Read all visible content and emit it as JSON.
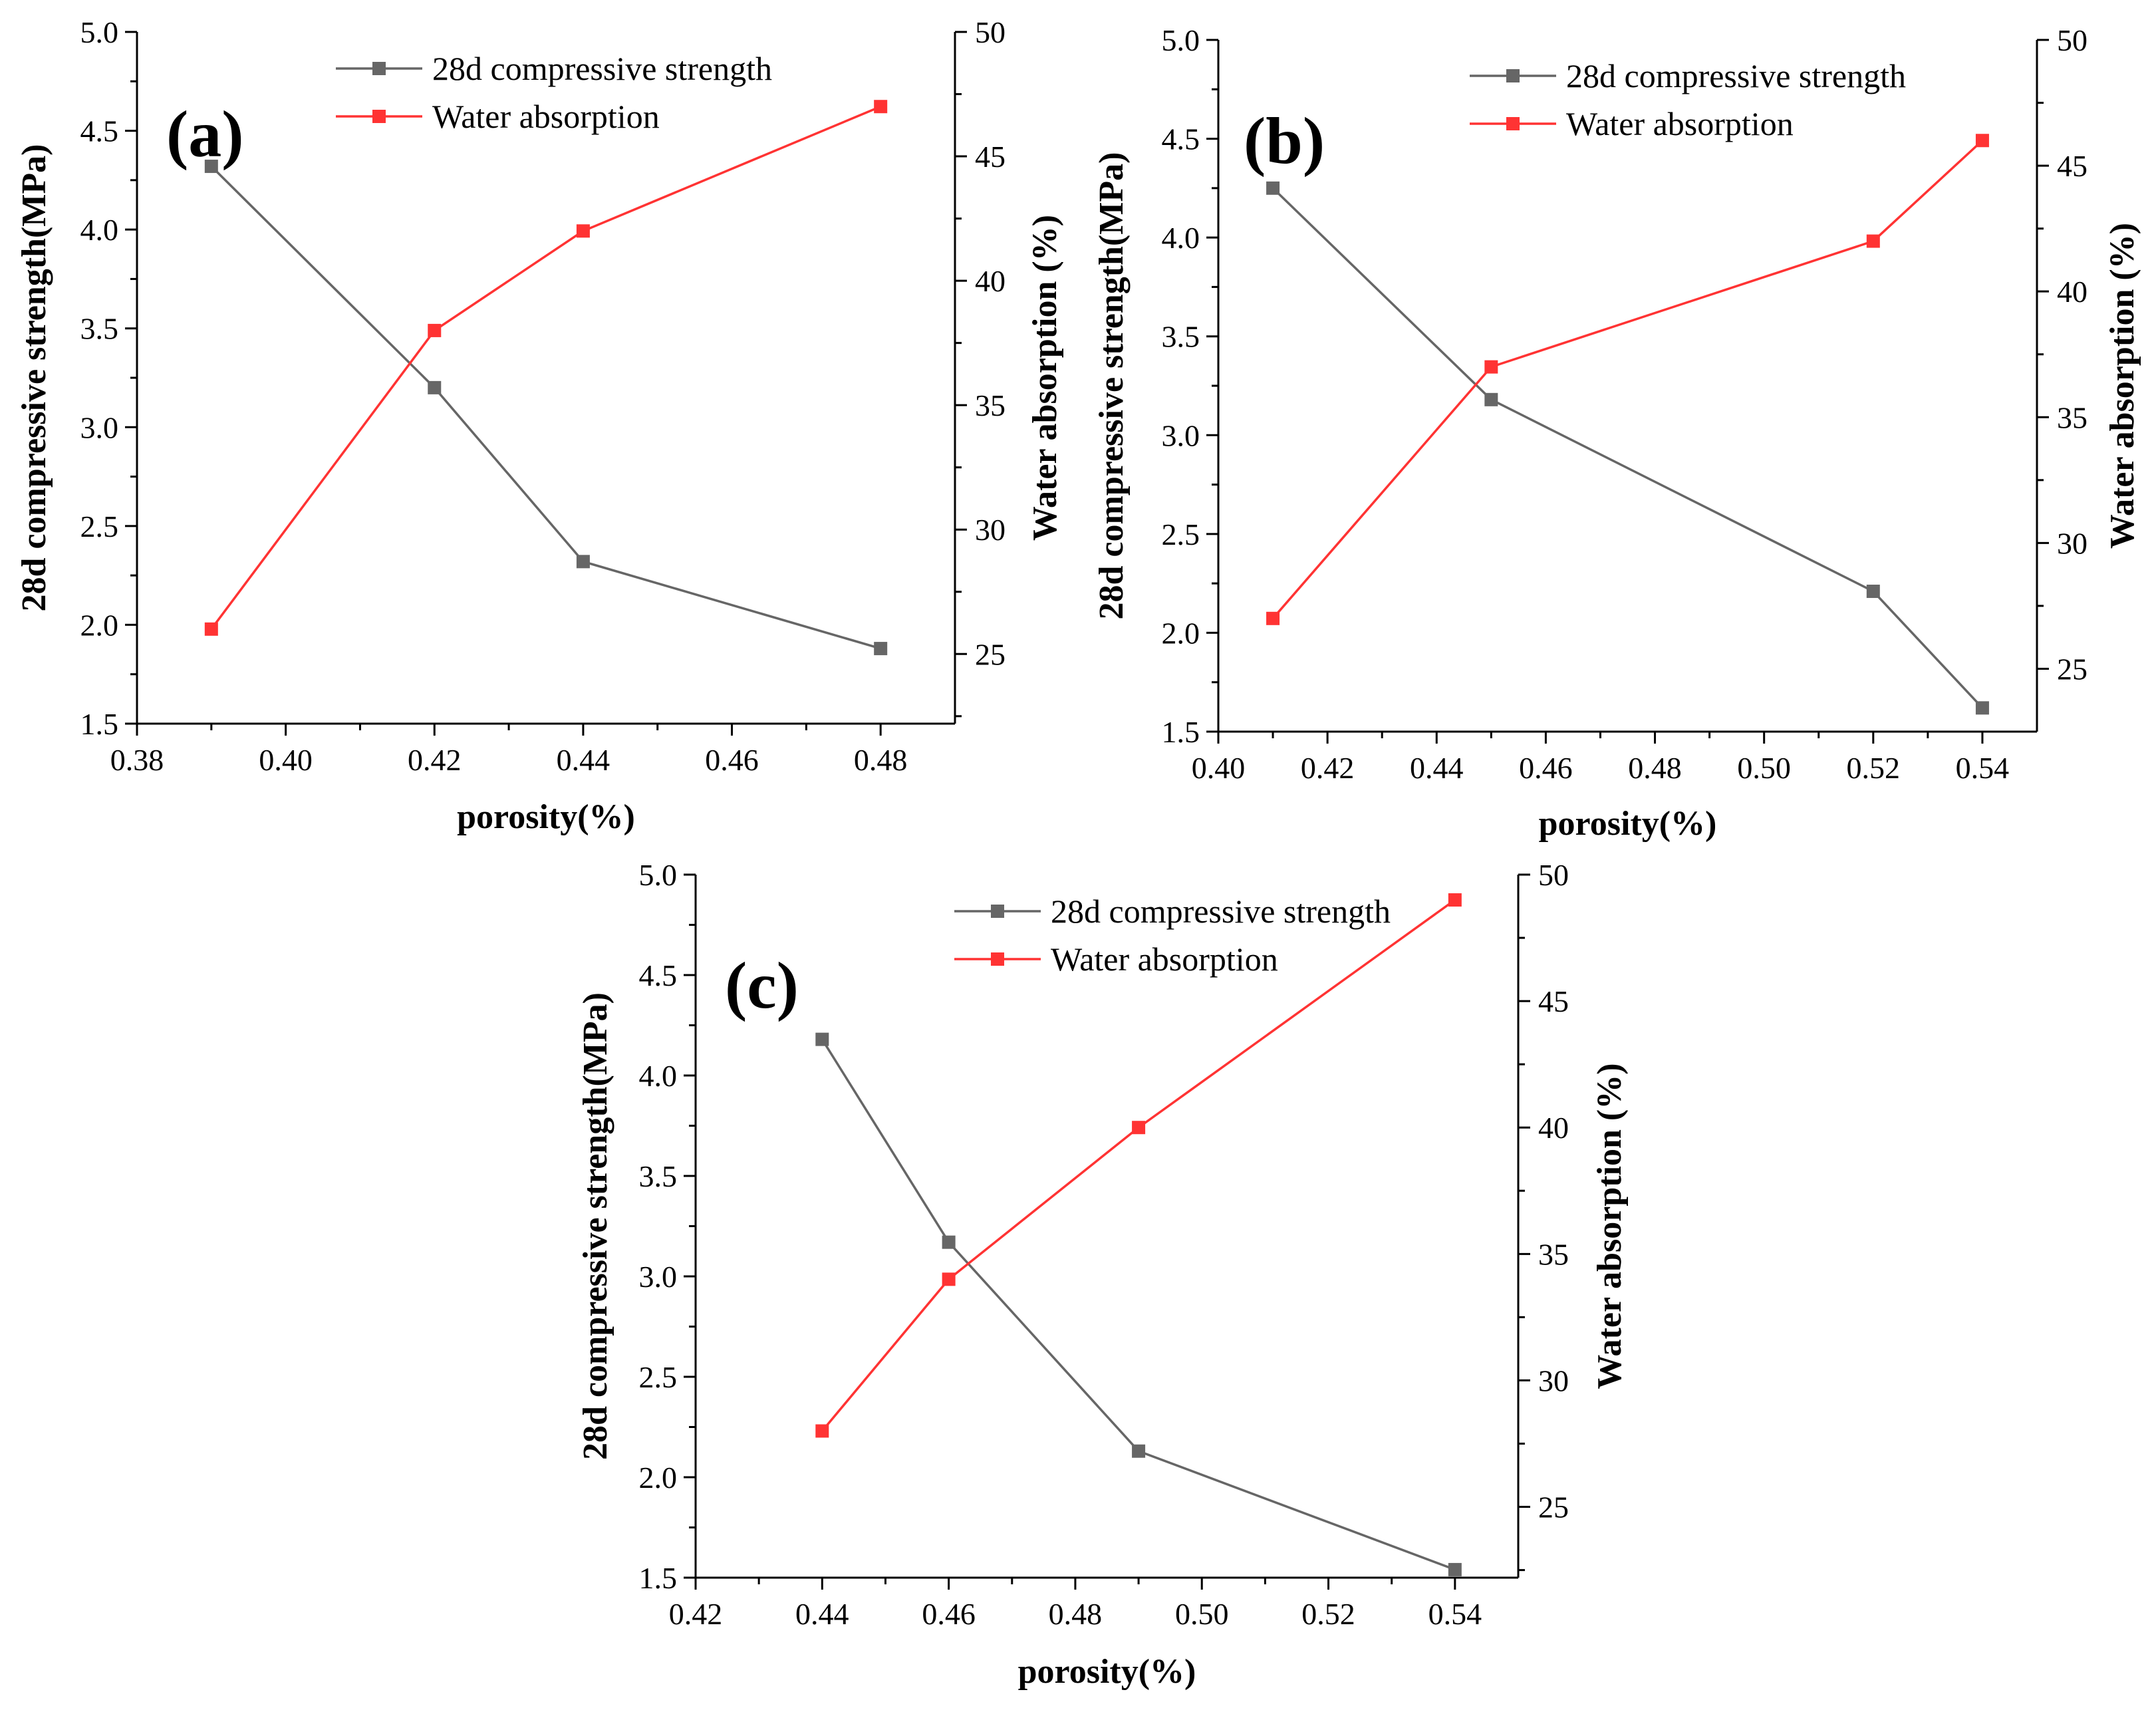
{
  "colors": {
    "strength": "#666666",
    "absorption": "#ff3333",
    "axis": "#000000"
  },
  "chart_data": [
    {
      "panel": "(a)",
      "type": "line",
      "xlabel": "porosity(%)",
      "ylabel": "28d compressive strength(MPa)",
      "y2label": "Water absorption (%)",
      "xlim": [
        0.38,
        0.49
      ],
      "ylim": [
        1.5,
        5.0
      ],
      "y2lim": [
        22.2,
        50
      ],
      "xticks": [
        "0.38",
        "0.40",
        "0.42",
        "0.44",
        "0.46",
        "0.48"
      ],
      "yticks": [
        "1.5",
        "2.0",
        "2.5",
        "3.0",
        "3.5",
        "4.0",
        "4.5",
        "5.0"
      ],
      "y2ticks": [
        "25",
        "30",
        "35",
        "40",
        "45",
        "50"
      ],
      "series": [
        {
          "name": "28d compressive strength",
          "axis": "left",
          "x": [
            0.39,
            0.42,
            0.44,
            0.48
          ],
          "values": [
            4.32,
            3.2,
            2.32,
            1.88
          ]
        },
        {
          "name": "Water absorption",
          "axis": "right",
          "x": [
            0.39,
            0.42,
            0.44,
            0.48
          ],
          "values": [
            26,
            38,
            42,
            47
          ]
        }
      ]
    },
    {
      "panel": "(b)",
      "type": "line",
      "xlabel": "porosity(%)",
      "ylabel": "28d compressive strength(MPa)",
      "y2label": "Water absorption (%)",
      "xlim": [
        0.4,
        0.55
      ],
      "ylim": [
        1.5,
        5.0
      ],
      "y2lim": [
        22.5,
        50
      ],
      "xticks": [
        "0.40",
        "0.42",
        "0.44",
        "0.46",
        "0.48",
        "0.50",
        "0.52",
        "0.54"
      ],
      "yticks": [
        "1.5",
        "2.0",
        "2.5",
        "3.0",
        "3.5",
        "4.0",
        "4.5",
        "5.0"
      ],
      "y2ticks": [
        "25",
        "30",
        "35",
        "40",
        "45",
        "50"
      ],
      "series": [
        {
          "name": "28d compressive strength",
          "axis": "left",
          "x": [
            0.41,
            0.45,
            0.52,
            0.54
          ],
          "values": [
            4.25,
            3.18,
            2.21,
            1.62
          ]
        },
        {
          "name": "Water absorption",
          "axis": "right",
          "x": [
            0.41,
            0.45,
            0.52,
            0.54
          ],
          "values": [
            27,
            37,
            42,
            46
          ]
        }
      ]
    },
    {
      "panel": "(c)",
      "type": "line",
      "xlabel": "porosity(%)",
      "ylabel": "28d compressive strength(MPa)",
      "y2label": "Water absorption (%)",
      "xlim": [
        0.42,
        0.55
      ],
      "ylim": [
        1.5,
        5.0
      ],
      "y2lim": [
        22.2,
        50
      ],
      "xticks": [
        "0.42",
        "0.44",
        "0.46",
        "0.48",
        "0.50",
        "0.52",
        "0.54"
      ],
      "yticks": [
        "1.5",
        "2.0",
        "2.5",
        "3.0",
        "3.5",
        "4.0",
        "4.5",
        "5.0"
      ],
      "y2ticks": [
        "25",
        "30",
        "35",
        "40",
        "45",
        "50"
      ],
      "series": [
        {
          "name": "28d compressive strength",
          "axis": "left",
          "x": [
            0.44,
            0.46,
            0.49,
            0.54
          ],
          "values": [
            4.18,
            3.17,
            2.13,
            1.54
          ]
        },
        {
          "name": "Water absorption",
          "axis": "right",
          "x": [
            0.44,
            0.46,
            0.49,
            0.54
          ],
          "values": [
            28,
            34,
            40,
            49
          ]
        }
      ]
    }
  ]
}
